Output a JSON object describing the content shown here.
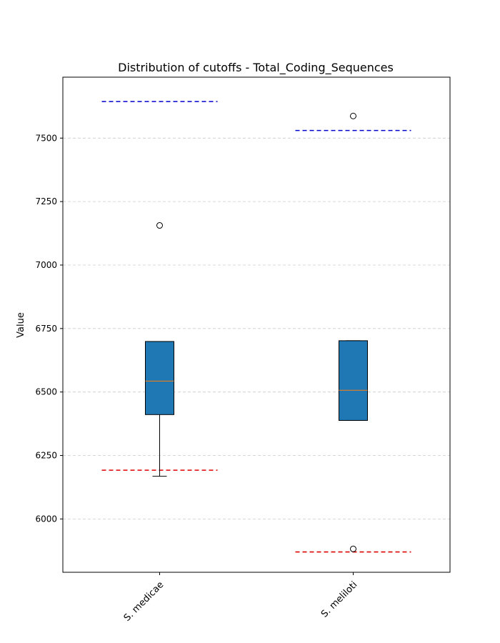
{
  "chart_data": {
    "type": "box",
    "title": "Distribution of cutoffs - Total_Coding_Sequences",
    "xlabel": "",
    "ylabel": "Value",
    "ylim": [
      5790,
      7740
    ],
    "yticks": [
      6000,
      6250,
      6500,
      6750,
      7000,
      7250,
      7500
    ],
    "grid": "y-dashed",
    "categories": [
      "S. medicae",
      "S. meliloti"
    ],
    "boxes": [
      {
        "category": "S. medicae",
        "q1": 6411,
        "median": 6543,
        "q3": 6699,
        "whisker_low": 6168,
        "whisker_high": 6699,
        "outliers": [
          7156
        ],
        "upper_cutoff": 7644,
        "lower_cutoff": 6192
      },
      {
        "category": "S. meliloti",
        "q1": 6388,
        "median": 6507,
        "q3": 6702,
        "whisker_low": 6388,
        "whisker_high": 6702,
        "outliers": [
          7587,
          5882
        ],
        "upper_cutoff": 7530,
        "lower_cutoff": 5870
      }
    ],
    "colors": {
      "box_fill": "#1f77b4",
      "median": "#ff7f0e",
      "upper_cutoff": "#0000cc",
      "lower_cutoff": "#dd0000",
      "grid": "#cccccc"
    }
  }
}
